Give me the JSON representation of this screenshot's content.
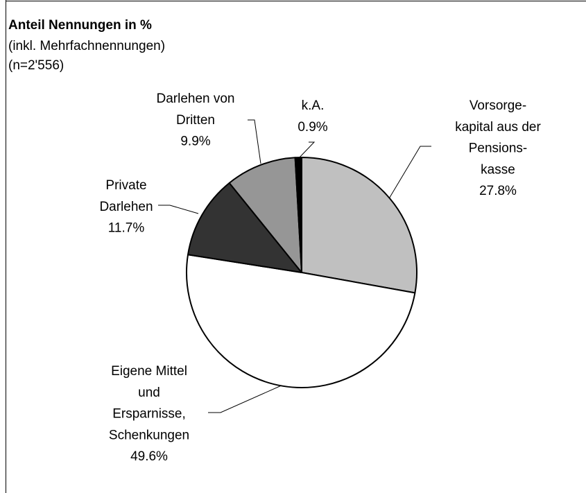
{
  "chart_data": {
    "type": "pie",
    "title": "Anteil Nennungen in %",
    "subtitle": [
      "(inkl. Mehrfachnennungen)",
      "(n=2'556)"
    ],
    "categories": [
      "Vorsorge-\nkapital aus der\nPensions-\nkasse",
      "Eigene Mittel\nund\nErsparnisse,\nSchenkungen",
      "Private\nDarlehen",
      "Darlehen von\nDritten",
      "k.A."
    ],
    "values": [
      27.8,
      49.6,
      11.7,
      9.9,
      0.9
    ],
    "value_labels": [
      "27.8%",
      "49.6%",
      "11.7%",
      "9.9%",
      "0.9%"
    ],
    "colors": [
      "#c0c0c0",
      "#ffffff",
      "#333333",
      "#969696",
      "#000000"
    ]
  }
}
